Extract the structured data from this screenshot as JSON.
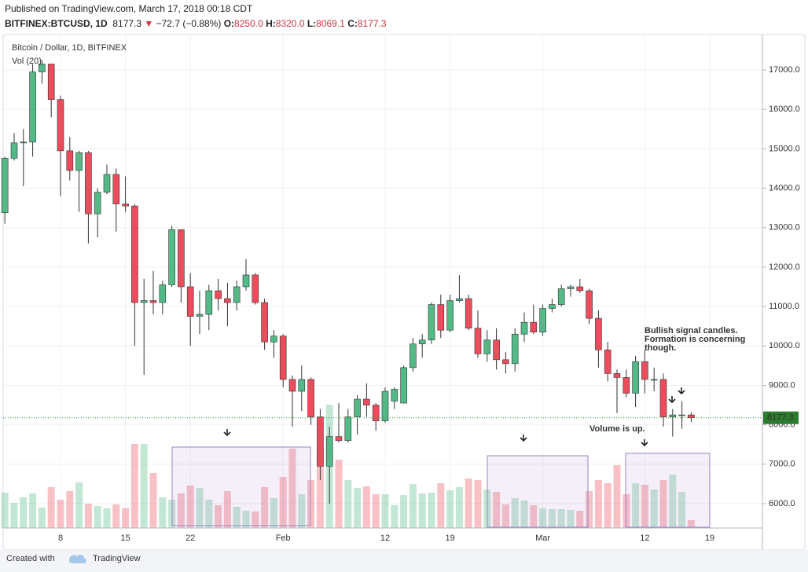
{
  "header": {
    "published": "Published on TradingView.com, March 17, 2018 00:18 CDT",
    "symbol": "BITFINEX:BTCUSD, 1D",
    "last": "8177.3",
    "arrow": "▼",
    "change": "−72.7 (−0.88%)",
    "o_label": "O:",
    "o": "8250.0",
    "h_label": "H:",
    "h": "8320.0",
    "l_label": "L:",
    "l": "8069.1",
    "c_label": "C:",
    "c": "8177.3"
  },
  "chart_data": {
    "type": "candlestick",
    "title": "Bitcoin / Dollar, 1D, BITFINEX",
    "volume_label": "Vol (20)",
    "categories": [
      null,
      null,
      null,
      null,
      null,
      null,
      "8",
      null,
      null,
      null,
      null,
      null,
      null,
      "15",
      null,
      null,
      null,
      null,
      null,
      null,
      "22",
      null,
      null,
      null,
      null,
      null,
      null,
      null,
      null,
      null,
      "Feb",
      null,
      null,
      null,
      null,
      null,
      null,
      null,
      null,
      null,
      null,
      "12",
      null,
      null,
      null,
      null,
      null,
      null,
      "19",
      null,
      null,
      null,
      null,
      null,
      null,
      null,
      null,
      null,
      "Mar",
      null,
      null,
      null,
      null,
      null,
      null,
      null,
      null,
      null,
      null,
      "12",
      null,
      null,
      null,
      null,
      null,
      null,
      "19"
    ],
    "open": [
      13380,
      14760,
      15150,
      15170,
      16950,
      17150,
      16250,
      14950,
      14450,
      14900,
      13350,
      13900,
      14350,
      13600,
      13550,
      11100,
      11150,
      11100,
      11550,
      12950,
      11500,
      10750,
      10800,
      11400,
      11200,
      11100,
      11500,
      11800,
      11100,
      10100,
      10250,
      9150,
      8850,
      9150,
      8200,
      6950,
      7700,
      7600,
      8200,
      8650,
      8500,
      8100,
      8600,
      8550,
      9450,
      10050,
      10150,
      11050,
      10400,
      11150,
      11200,
      10450,
      9800,
      10150,
      9650,
      9550,
      10300,
      10600,
      10350,
      10950,
      11050,
      11450,
      11500,
      11400,
      10700,
      9900,
      9300,
      9200,
      8800,
      9600,
      9150,
      9150,
      8200,
      8250,
      8250,
      null,
      null
    ],
    "high": [
      14800,
      15400,
      15500,
      17150,
      17250,
      17150,
      16350,
      15300,
      14950,
      14950,
      14000,
      14600,
      14500,
      14300,
      13600,
      11700,
      11900,
      11650,
      13050,
      12950,
      11850,
      11400,
      11550,
      11700,
      11600,
      11650,
      12200,
      11850,
      11200,
      10400,
      10300,
      9250,
      9500,
      9200,
      8400,
      7950,
      8550,
      8400,
      8750,
      9050,
      8550,
      8950,
      8950,
      9500,
      10200,
      10300,
      11100,
      11300,
      11300,
      11800,
      11300,
      10900,
      10400,
      10450,
      9850,
      10450,
      10850,
      11050,
      11050,
      11200,
      11550,
      11550,
      11700,
      11450,
      10900,
      10100,
      9400,
      9400,
      9750,
      9900,
      9450,
      9300,
      8400,
      8600,
      8320,
      null,
      null
    ],
    "low": [
      13100,
      14700,
      14050,
      14800,
      16650,
      15800,
      13800,
      14200,
      13400,
      12600,
      12750,
      13850,
      12900,
      13400,
      10000,
      9270,
      10800,
      10800,
      11500,
      11100,
      10000,
      10300,
      10400,
      10900,
      10500,
      10900,
      11400,
      11050,
      9900,
      9700,
      8950,
      7950,
      8350,
      8000,
      6600,
      6000,
      7550,
      7550,
      7750,
      8200,
      7850,
      8050,
      8400,
      8550,
      9350,
      9700,
      10050,
      10200,
      10350,
      11100,
      10400,
      9700,
      9600,
      9400,
      9300,
      9350,
      10100,
      10300,
      10250,
      10850,
      11000,
      11250,
      11350,
      10550,
      9450,
      9100,
      8300,
      8700,
      8450,
      8800,
      8850,
      7950,
      7700,
      7900,
      8069.1,
      null,
      null
    ],
    "close": [
      14760,
      15150,
      15170,
      16950,
      17150,
      16250,
      14950,
      14450,
      14900,
      13350,
      13900,
      14350,
      13600,
      13550,
      11100,
      11150,
      11100,
      11550,
      12950,
      11500,
      10750,
      10800,
      11400,
      11200,
      11100,
      11500,
      11800,
      11100,
      10100,
      10250,
      9150,
      8850,
      9150,
      8200,
      6950,
      7700,
      7600,
      8200,
      8650,
      8500,
      8100,
      8850,
      8900,
      9450,
      10050,
      10150,
      11050,
      10400,
      11150,
      11200,
      10450,
      9800,
      10150,
      9650,
      9550,
      10300,
      10600,
      10350,
      10950,
      11050,
      11450,
      11500,
      11400,
      10700,
      9900,
      9300,
      9200,
      8800,
      9600,
      9150,
      9150,
      8200,
      8250,
      8250,
      8177.3,
      null,
      null
    ],
    "volume": [
      45,
      32,
      39,
      44,
      26,
      52,
      36,
      47,
      58,
      31,
      28,
      25,
      30,
      25,
      107,
      107,
      70,
      39,
      36,
      44,
      54,
      51,
      36,
      29,
      47,
      27,
      22,
      21,
      52,
      38,
      65,
      101,
      43,
      61,
      101,
      157,
      87,
      61,
      51,
      53,
      43,
      43,
      29,
      42,
      56,
      44,
      45,
      57,
      48,
      52,
      63,
      61,
      49,
      46,
      30,
      38,
      35,
      29,
      25,
      24,
      24,
      23,
      22,
      47,
      61,
      57,
      80,
      43,
      57,
      55,
      49,
      61,
      68,
      46,
      10,
      null,
      null
    ],
    "up_color": "#53b987",
    "down_color": "#eb4d5c",
    "ylim": [
      5382,
      17877
    ],
    "yticks": [
      {
        "value": 6000,
        "label": "6000.0"
      },
      {
        "value": 7000,
        "label": "7000.0"
      },
      {
        "value": 8000,
        "label": "8000.0"
      },
      {
        "value": 9000,
        "label": "9000.0"
      },
      {
        "value": 10000,
        "label": "10000.0"
      },
      {
        "value": 11000,
        "label": "11000.0"
      },
      {
        "value": 12000,
        "label": "12000.0"
      },
      {
        "value": 13000,
        "label": "13000.0"
      },
      {
        "value": 14000,
        "label": "14000.0"
      },
      {
        "value": 15000,
        "label": "15000.0"
      },
      {
        "value": 16000,
        "label": "16000.0"
      },
      {
        "value": 17000,
        "label": "17000.0"
      }
    ],
    "last_price": 8177.3,
    "grid": true,
    "annotations": [
      "Bullish signal candles.",
      "Formation is concerning",
      "though.",
      "Volume is up."
    ]
  },
  "footer": {
    "created": "Created with",
    "brand": "TradingView"
  }
}
